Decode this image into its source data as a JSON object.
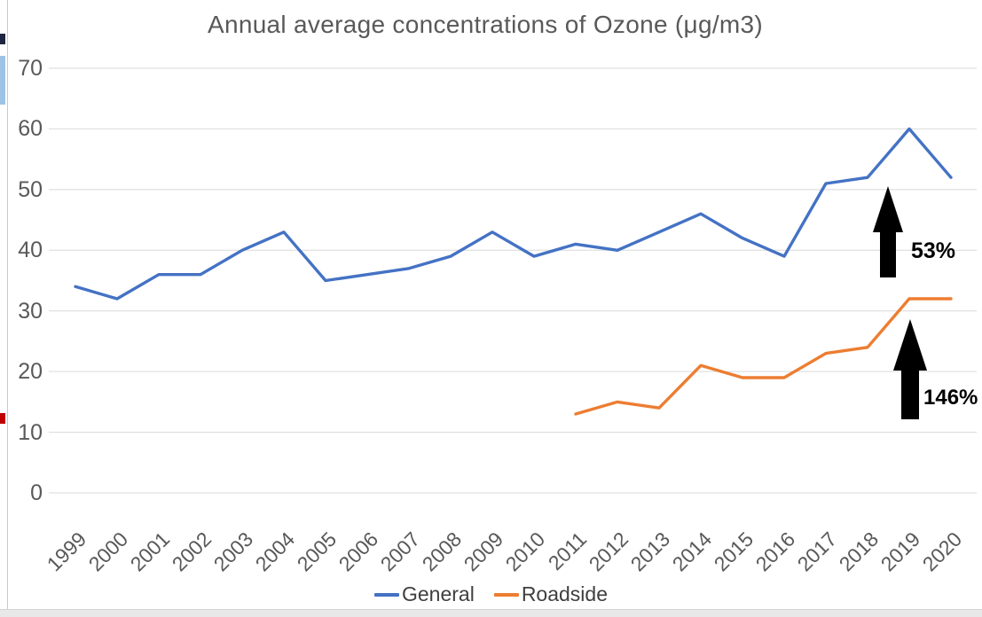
{
  "colors": {
    "general_line": "#4472C4",
    "roadside_line": "#ED7D31",
    "gridline": "#D9D9D9",
    "axis_text": "#595959",
    "title_text": "#595959",
    "annotation_arrow": "#000000"
  },
  "chart_data": {
    "type": "line",
    "title": "Annual average concentrations of Ozone (μg/m3)",
    "xlabel": "",
    "ylabel": "",
    "ylim": [
      0,
      70
    ],
    "ytick_step": 10,
    "grid": true,
    "legend_position": "bottom",
    "categories": [
      "1999",
      "2000",
      "2001",
      "2002",
      "2003",
      "2004",
      "2005",
      "2006",
      "2007",
      "2008",
      "2009",
      "2010",
      "2011",
      "2012",
      "2013",
      "2014",
      "2015",
      "2016",
      "2017",
      "2018",
      "2019",
      "2020"
    ],
    "series": [
      {
        "name": "General",
        "color": "#4472C4",
        "values": [
          34,
          32,
          36,
          36,
          40,
          43,
          35,
          36,
          37,
          39,
          43,
          39,
          41,
          40,
          43,
          46,
          42,
          39,
          51,
          52,
          60,
          52
        ]
      },
      {
        "name": "Roadside",
        "color": "#ED7D31",
        "values": [
          null,
          null,
          null,
          null,
          null,
          null,
          null,
          null,
          null,
          null,
          null,
          null,
          13,
          15,
          14,
          21,
          19,
          19,
          23,
          24,
          32,
          32
        ]
      }
    ],
    "annotations": [
      {
        "label": "53%",
        "series": "General",
        "shape": "black-up-arrow"
      },
      {
        "label": "146%",
        "series": "Roadside",
        "shape": "black-up-arrow"
      }
    ]
  },
  "legend": {
    "items": [
      {
        "label": "General"
      },
      {
        "label": "Roadside"
      }
    ]
  }
}
